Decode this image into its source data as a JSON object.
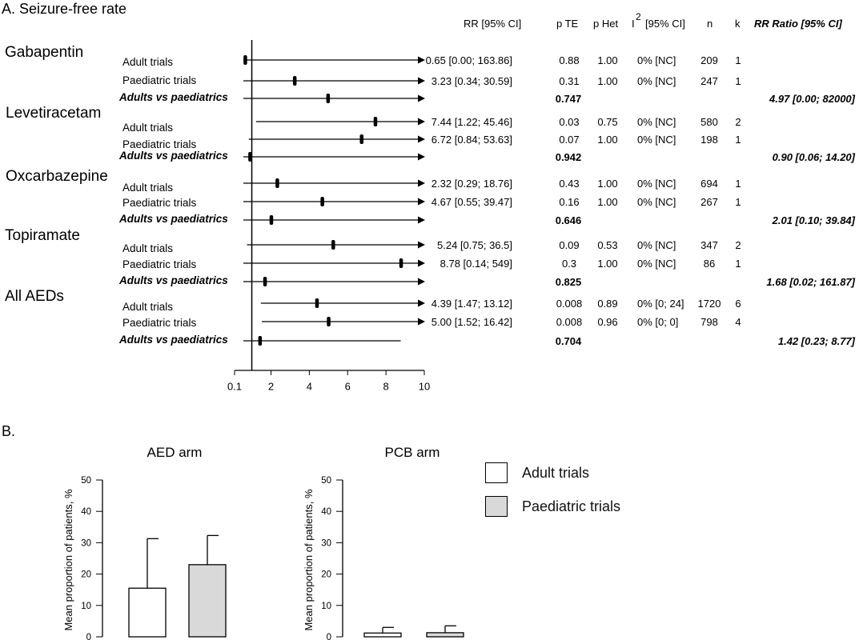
{
  "panel_a": {
    "title": "A. Seizure-free rate",
    "columns": [
      "RR [95% CI]",
      "p TE",
      "p Het",
      "I",
      "2",
      "[95% CI]",
      "n",
      "k",
      "RR Ratio  [95% CI]"
    ],
    "x_ticks": [
      "0.1",
      "2",
      "4",
      "6",
      "8",
      "10"
    ]
  },
  "panel_b": {
    "title": "B.",
    "y_axis_label": "Mean proportion of patients, %",
    "y_ticks": [
      "50",
      "40",
      "30",
      "20",
      "10",
      "0"
    ],
    "legend": [
      {
        "label": "Adult trials",
        "color": "#ffffff"
      },
      {
        "label": "Paediatric trials",
        "color": "#d9d9d9"
      }
    ]
  },
  "chart_data": [
    {
      "type": "forest",
      "title": "A. Seizure-free rate",
      "x_ticks": [
        0.1,
        2,
        4,
        6,
        8,
        10
      ],
      "xlim": [
        0.1,
        10
      ],
      "reference_line": 1,
      "groups": [
        {
          "name": "Gabapentin",
          "rows": [
            {
              "label": "Adult trials",
              "rr": 0.65,
              "ci": [
                0.0,
                163.86
              ],
              "ci_text": "0.65  [0.00; 163.86]",
              "p_te": "0.88",
              "p_het": "1.00",
              "i2": "0%  [NC]",
              "n": "209",
              "k": "1"
            },
            {
              "label": "Paediatric trials",
              "rr": 3.23,
              "ci": [
                0.34,
                30.59
              ],
              "ci_text": "3.23  [0.34; 30.59]",
              "p_te": "0.31",
              "p_het": "1.00",
              "i2": "0%  [NC]",
              "n": "247",
              "k": "1"
            }
          ],
          "comparison": {
            "label": "Adults vs paediatrics",
            "ratio": 4.97,
            "ci": [
              0.0,
              82000
            ],
            "p_te": "0.747",
            "ratio_text": "4.97 [0.00; 82000]"
          }
        },
        {
          "name": "Levetiracetam",
          "rows": [
            {
              "label": "Adult trials",
              "rr": 7.44,
              "ci": [
                1.22,
                45.46
              ],
              "ci_text": "7.44 [1.22; 45.46]",
              "p_te": "0.03",
              "p_het": "0.75",
              "i2": "0%  [NC]",
              "n": "580",
              "k": "2"
            },
            {
              "label": "Paediatric trials",
              "rr": 6.72,
              "ci": [
                0.84,
                53.63
              ],
              "ci_text": "6.72 [0.84; 53.63]",
              "p_te": "0.07",
              "p_het": "1.00",
              "i2": "0%  [NC]",
              "n": "198",
              "k": "1"
            }
          ],
          "comparison": {
            "label": "Adults vs paediatrics",
            "ratio": 0.9,
            "ci": [
              0.06,
              14.2
            ],
            "p_te": "0.942",
            "ratio_text": "0.90 [0.06; 14.20]"
          }
        },
        {
          "name": "Oxcarbazepine",
          "rows": [
            {
              "label": "Adult trials",
              "rr": 2.32,
              "ci": [
                0.29,
                18.76
              ],
              "ci_text": "2.32 [0.29; 18.76]",
              "p_te": "0.43",
              "p_het": "1.00",
              "i2": "0%  [NC]",
              "n": "694",
              "k": "1"
            },
            {
              "label": "Paediatric trials",
              "rr": 4.67,
              "ci": [
                0.55,
                39.47
              ],
              "ci_text": "4.67 [0.55; 39.47]",
              "p_te": "0.16",
              "p_het": "1.00",
              "i2": "0%  [NC]",
              "n": "267",
              "k": "1"
            }
          ],
          "comparison": {
            "label": "Adults vs paediatrics",
            "ratio": 2.01,
            "ci": [
              0.1,
              39.84
            ],
            "p_te": "0.646",
            "ratio_text": "2.01 [0.10; 39.84]"
          }
        },
        {
          "name": "Topiramate",
          "rows": [
            {
              "label": "Adult trials",
              "rr": 5.24,
              "ci": [
                0.75,
                36.5
              ],
              "ci_text": "5.24 [0.75; 36.5]",
              "p_te": "0.09",
              "p_het": "0.53",
              "i2": "0%  [NC]",
              "n": "347",
              "k": "2"
            },
            {
              "label": "Paediatric trials",
              "rr": 8.78,
              "ci": [
                0.14,
                549
              ],
              "ci_text": "8.78 [0.14; 549]",
              "p_te": "0.3",
              "p_het": "1.00",
              "i2": "0%  [NC]",
              "n": "86",
              "k": "1"
            }
          ],
          "comparison": {
            "label": "Adults vs paediatrics",
            "ratio": 1.68,
            "ci": [
              0.02,
              161.87
            ],
            "p_te": "0.825",
            "ratio_text": "1.68 [0.02; 161.87]"
          }
        },
        {
          "name": "All AEDs",
          "rows": [
            {
              "label": "Adult trials",
              "rr": 4.39,
              "ci": [
                1.47,
                13.12
              ],
              "ci_text": "4.39 [1.47; 13.12]",
              "p_te": "0.008",
              "p_het": "0.89",
              "i2": "0%  [0; 24]",
              "n": "1720",
              "k": "6"
            },
            {
              "label": "Paediatric trials",
              "rr": 5.0,
              "ci": [
                1.52,
                16.42
              ],
              "ci_text": "5.00 [1.52; 16.42]",
              "p_te": "0.008",
              "p_het": "0.96",
              "i2": "0%  [0; 0]",
              "n": "798",
              "k": "4"
            }
          ],
          "comparison": {
            "label": "Adults vs paediatrics",
            "ratio": 1.42,
            "ci": [
              0.23,
              8.77
            ],
            "p_te": "0.704",
            "ratio_text": "1.42 [0.23; 8.77]"
          }
        }
      ]
    },
    {
      "type": "bar",
      "title": "AED arm",
      "ylabel": "Mean proportion of patients, %",
      "ylim": [
        0,
        50
      ],
      "categories": [
        "Adult trials",
        "Paediatric trials"
      ],
      "values": [
        15.5,
        23
      ],
      "error_upper": [
        31.3,
        32.3
      ],
      "colors": [
        "#ffffff",
        "#d9d9d9"
      ]
    },
    {
      "type": "bar",
      "title": "PCB arm",
      "ylabel": "Mean proportion of patients, %",
      "ylim": [
        0,
        50
      ],
      "categories": [
        "Adult trials",
        "Paediatric trials"
      ],
      "values": [
        1.2,
        1.3
      ],
      "error_upper": [
        3.0,
        3.5
      ],
      "colors": [
        "#ffffff",
        "#d9d9d9"
      ]
    }
  ]
}
